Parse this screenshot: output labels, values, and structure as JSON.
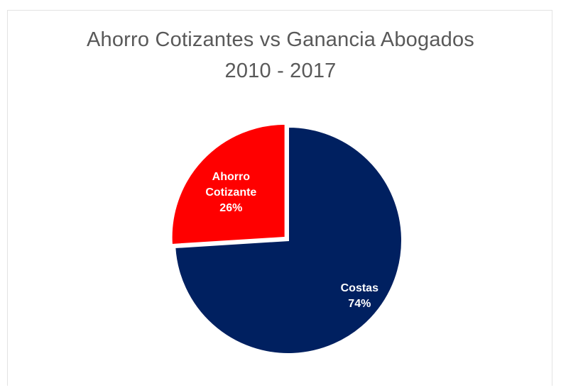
{
  "chart_data": {
    "type": "pie",
    "title": "Ahorro Cotizantes vs Ganancia Abogados",
    "subtitle": "2010 - 2017",
    "slices": [
      {
        "label_lines": [
          "Costas"
        ],
        "percent_label": "74%",
        "value": 74,
        "color": "#002060"
      },
      {
        "label_lines": [
          "Ahorro",
          "Cotizante"
        ],
        "percent_label": "26%",
        "value": 26,
        "color": "#ff0000"
      }
    ],
    "start_angle_deg": 0,
    "direction": "clockwise",
    "exploded_slice_index": 1,
    "legend": "none"
  }
}
